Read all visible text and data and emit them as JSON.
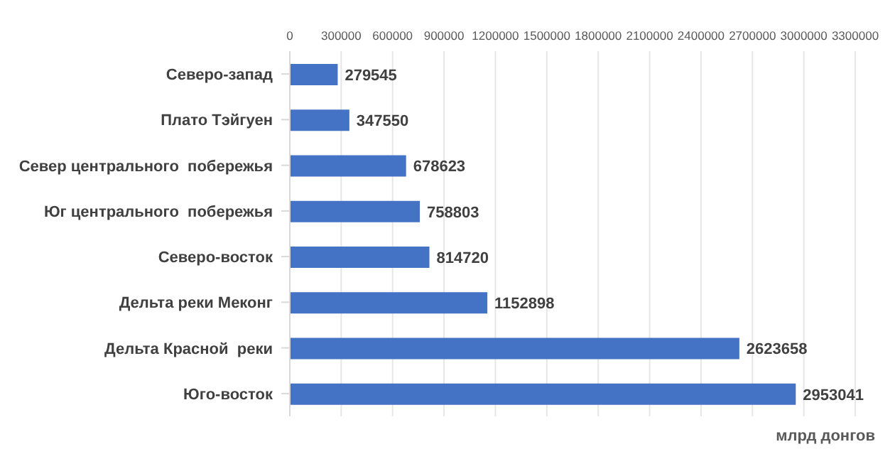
{
  "chart_data": {
    "type": "bar",
    "orientation": "horizontal",
    "xlabel": "млрд донгов",
    "categories": [
      "Северо-запад",
      "Плато Тэйгуен",
      "Север центрального  побережья",
      "Юг центрального  побережья",
      "Северо-восток",
      "Дельта реки Меконг",
      "Дельта Красной  реки",
      "Юго-восток"
    ],
    "values": [
      279545,
      347550,
      678623,
      758803,
      814720,
      1152898,
      2623658,
      2953041
    ],
    "color": "#4472c4",
    "xlim": [
      0,
      3300000
    ],
    "xticks": [
      0,
      300000,
      600000,
      900000,
      1200000,
      1500000,
      1800000,
      2100000,
      2400000,
      2700000,
      3000000,
      3300000
    ],
    "grid": "x",
    "data_labels": true,
    "legend": false
  }
}
